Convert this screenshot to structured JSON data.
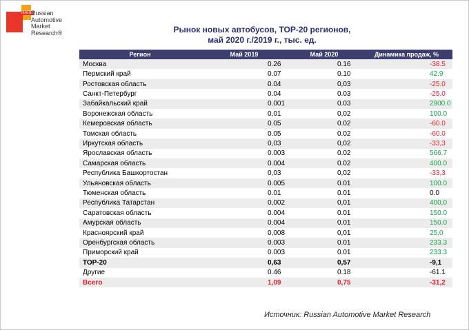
{
  "logo": {
    "small_text": "НАПИ",
    "name": "Russian\nAutomotive\nMarket\nResearch®"
  },
  "title": {
    "line1": "Рынок новых автобусов, ТОР-20 регионов,",
    "line2": "май 2020 г./2019 г., тыс. ед."
  },
  "table": {
    "headers": [
      "Регион",
      "Май 2019",
      "Май 2020",
      "Динамика продаж, %"
    ],
    "rows": [
      {
        "region": "Москва",
        "may2019": "0.26",
        "may2020": "0.16",
        "dyn": "-38.5",
        "sign": "neg"
      },
      {
        "region": "Пермский край",
        "may2019": "0.07",
        "may2020": "0.10",
        "dyn": "42.9",
        "sign": "pos"
      },
      {
        "region": "Ростовская область",
        "may2019": "0.04",
        "may2020": "0,03",
        "dyn": "-25.0",
        "sign": "neg"
      },
      {
        "region": "Санкт-Петербург",
        "may2019": "0.04",
        "may2020": "0.03",
        "dyn": "-25.0",
        "sign": "neg"
      },
      {
        "region": "Забайкальский край",
        "may2019": "0.001",
        "may2020": "0.03",
        "dyn": "2900.0",
        "sign": "pos"
      },
      {
        "region": "Воронежская область",
        "may2019": "0,01",
        "may2020": "0,02",
        "dyn": "100.0",
        "sign": "pos"
      },
      {
        "region": "Кемеровская область",
        "may2019": "0.05",
        "may2020": "0.02",
        "dyn": "-60.0",
        "sign": "neg"
      },
      {
        "region": "Томская область",
        "may2019": "0.05",
        "may2020": "0.02",
        "dyn": "-60.0",
        "sign": "neg"
      },
      {
        "region": "Иркутская область",
        "may2019": "0,03",
        "may2020": "0,02",
        "dyn": "-33,3",
        "sign": "neg"
      },
      {
        "region": "Ярославская область",
        "may2019": "0.003",
        "may2020": "0.02",
        "dyn": "566.7",
        "sign": "pos"
      },
      {
        "region": "Самарская область",
        "may2019": "0.004",
        "may2020": "0.02",
        "dyn": "400.0",
        "sign": "pos"
      },
      {
        "region": "Республика Башкортостан",
        "may2019": "0,03",
        "may2020": "0,02",
        "dyn": "-33,3",
        "sign": "neg"
      },
      {
        "region": "Ульяновская область",
        "may2019": "0.005",
        "may2020": "0.01",
        "dyn": "100.0",
        "sign": "pos"
      },
      {
        "region": "Тюменская область",
        "may2019": "0.01",
        "may2020": "0.01",
        "dyn": "0.0",
        "sign": "neutral"
      },
      {
        "region": "Республика Татарстан",
        "may2019": "0,002",
        "may2020": "0,01",
        "dyn": "400,0",
        "sign": "pos"
      },
      {
        "region": "Саратовская область",
        "may2019": "0.004",
        "may2020": "0.01",
        "dyn": "150.0",
        "sign": "pos"
      },
      {
        "region": "Амурская область",
        "may2019": "0.004",
        "may2020": "0.01",
        "dyn": "150.0",
        "sign": "pos"
      },
      {
        "region": "Красноярский край",
        "may2019": "0,008",
        "may2020": "0,01",
        "dyn": "25,0",
        "sign": "pos"
      },
      {
        "region": "Оренбургская область",
        "may2019": "0.003",
        "may2020": "0.01",
        "dyn": "233.3",
        "sign": "pos"
      },
      {
        "region": "Приморский край",
        "may2019": "0.003",
        "may2020": "0.01",
        "dyn": "233.3",
        "sign": "pos"
      }
    ],
    "summary": [
      {
        "region": "ТОР-20",
        "may2019": "0,63",
        "may2020": "0,57",
        "dyn": "-9,1",
        "style": "bold"
      },
      {
        "region": "Другие",
        "may2019": "0.46",
        "may2020": "0.18",
        "dyn": "-61.1",
        "style": "plain"
      },
      {
        "region": "Всего",
        "may2019": "1,09",
        "may2020": "0,75",
        "dyn": "-31,2",
        "style": "total"
      }
    ]
  },
  "source": "Источник: Russian Automotive Market Research",
  "colors": {
    "header_bg": "#3d3e6e",
    "title": "#2a2f6e",
    "positive": "#1aa34a",
    "negative": "#e0202a",
    "stripe": "#ececec"
  }
}
